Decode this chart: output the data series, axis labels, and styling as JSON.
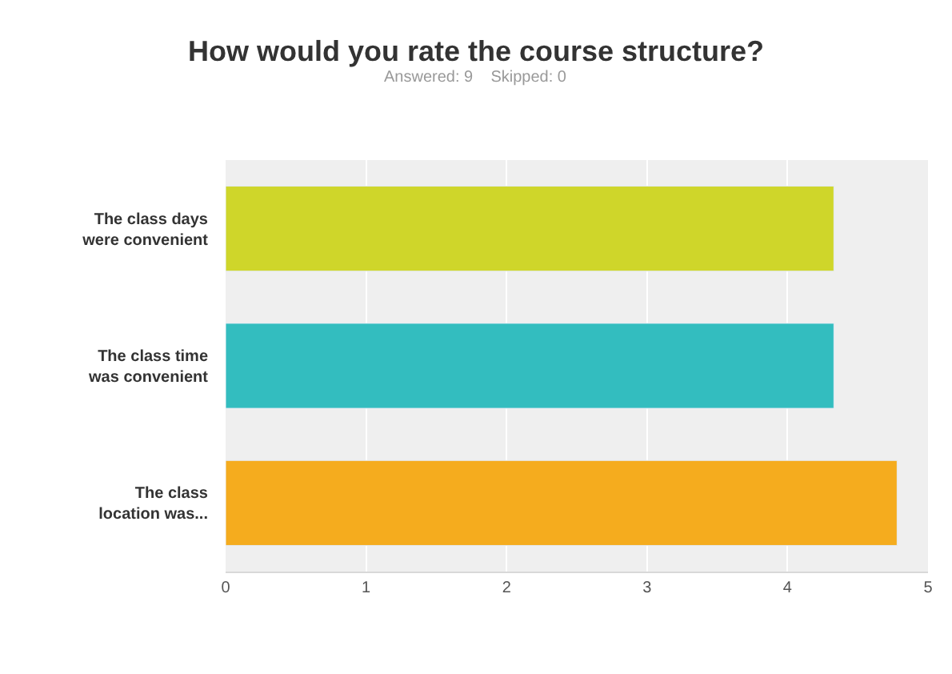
{
  "chart_data": {
    "type": "bar",
    "orientation": "horizontal",
    "title": "How would you rate the course structure?",
    "subtitle": "Answered: 9    Skipped: 0",
    "categories": [
      "The class days were convenient",
      "The class time was convenient",
      "The class location was..."
    ],
    "values": [
      4.33,
      4.33,
      4.78
    ],
    "colors": [
      "#cfd62a",
      "#33bdbf",
      "#f5ac1e"
    ],
    "xlim": [
      0,
      5
    ],
    "xticks": [
      0,
      1,
      2,
      3,
      4,
      5
    ],
    "grid": "x"
  }
}
